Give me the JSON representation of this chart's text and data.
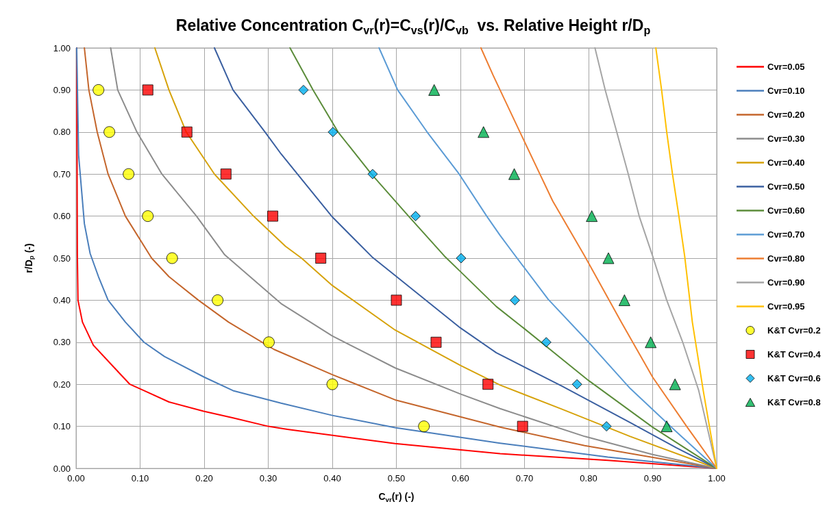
{
  "chart_data": {
    "type": "line",
    "title": "Relative Concentration C$_{vr}$(r)=C$_{vs}$(r)/C$_{vb}$  vs. Relative Height r/D$_{p}$",
    "xlabel": "C$_{vr}$(r) (-)",
    "ylabel": "r/D$_{p}$ (-)",
    "xlim": [
      0,
      1
    ],
    "ylim": [
      0,
      1
    ],
    "xticks": [
      {
        "value": 0,
        "label": "0.00"
      },
      {
        "value": 0.1,
        "label": "0.10"
      },
      {
        "value": 0.2,
        "label": "0.20"
      },
      {
        "value": 0.3,
        "label": "0.30"
      },
      {
        "value": 0.4,
        "label": "0.40"
      },
      {
        "value": 0.5,
        "label": "0.50"
      },
      {
        "value": 0.6,
        "label": "0.60"
      },
      {
        "value": 0.7,
        "label": "0.70"
      },
      {
        "value": 0.8,
        "label": "0.80"
      },
      {
        "value": 0.9,
        "label": "0.90"
      },
      {
        "value": 1,
        "label": "1.00"
      }
    ],
    "yticks": [
      {
        "value": 0,
        "label": "0.00"
      },
      {
        "value": 0.1,
        "label": "0.10"
      },
      {
        "value": 0.2,
        "label": "0.20"
      },
      {
        "value": 0.3,
        "label": "0.30"
      },
      {
        "value": 0.4,
        "label": "0.40"
      },
      {
        "value": 0.5,
        "label": "0.50"
      },
      {
        "value": 0.6,
        "label": "0.60"
      },
      {
        "value": 0.7,
        "label": "0.70"
      },
      {
        "value": 0.8,
        "label": "0.80"
      },
      {
        "value": 0.9,
        "label": "0.90"
      },
      {
        "value": 1,
        "label": "1.00"
      }
    ],
    "grid": true,
    "legend": "right",
    "series": [
      {
        "name": "Cvr=0.05",
        "color": "#ff0000",
        "x": [
          0.001,
          0.002,
          0.003,
          0.01,
          0.027,
          0.06,
          0.084,
          0.106,
          0.145,
          0.199,
          0.245,
          0.3,
          0.33,
          0.498,
          0.662,
          0.83,
          1.0
        ],
        "values": [
          1.0,
          0.511,
          0.4,
          0.348,
          0.293,
          0.239,
          0.2,
          0.185,
          0.158,
          0.136,
          0.12,
          0.1,
          0.093,
          0.059,
          0.035,
          0.019,
          0.0
        ]
      },
      {
        "name": "Cvr=0.10",
        "color": "#4a7ebb",
        "x": [
          0.001,
          0.004,
          0.013,
          0.022,
          0.035,
          0.05,
          0.077,
          0.106,
          0.138,
          0.2,
          0.245,
          0.32,
          0.4,
          0.498,
          0.662,
          0.83,
          1.0
        ],
        "values": [
          1.0,
          0.745,
          0.582,
          0.511,
          0.456,
          0.4,
          0.348,
          0.3,
          0.266,
          0.217,
          0.185,
          0.155,
          0.126,
          0.097,
          0.06,
          0.027,
          0.0
        ]
      },
      {
        "name": "Cvr=0.20",
        "color": "#c4652b",
        "x": [
          0.013,
          0.02,
          0.033,
          0.05,
          0.077,
          0.118,
          0.145,
          0.191,
          0.238,
          0.309,
          0.4,
          0.498,
          0.662,
          0.794,
          1.0
        ],
        "values": [
          1.0,
          0.9,
          0.8,
          0.7,
          0.6,
          0.5,
          0.456,
          0.4,
          0.348,
          0.283,
          0.223,
          0.163,
          0.098,
          0.054,
          0.0
        ]
      },
      {
        "name": "Cvr=0.30",
        "color": "#8c8c8c",
        "x": [
          0.054,
          0.065,
          0.095,
          0.134,
          0.188,
          0.232,
          0.32,
          0.4,
          0.498,
          0.6,
          0.662,
          0.794,
          0.9,
          1.0
        ],
        "values": [
          1.0,
          0.9,
          0.8,
          0.7,
          0.6,
          0.508,
          0.392,
          0.315,
          0.239,
          0.177,
          0.142,
          0.076,
          0.033,
          0.0
        ]
      },
      {
        "name": "Cvr=0.40",
        "color": "#d6a20a",
        "x": [
          0.123,
          0.145,
          0.172,
          0.216,
          0.277,
          0.327,
          0.352,
          0.4,
          0.498,
          0.6,
          0.662,
          0.758,
          0.865,
          1.0
        ],
        "values": [
          1.0,
          0.9,
          0.8,
          0.7,
          0.6,
          0.528,
          0.5,
          0.435,
          0.329,
          0.245,
          0.198,
          0.141,
          0.076,
          0.0
        ]
      },
      {
        "name": "Cvr=0.50",
        "color": "#3a5fa0",
        "x": [
          0.216,
          0.245,
          0.295,
          0.32,
          0.4,
          0.462,
          0.498,
          0.6,
          0.656,
          0.758,
          0.865,
          0.937,
          1.0
        ],
        "values": [
          1.0,
          0.9,
          0.8,
          0.748,
          0.598,
          0.503,
          0.459,
          0.334,
          0.275,
          0.196,
          0.109,
          0.049,
          0.0
        ]
      },
      {
        "name": "Cvr=0.60",
        "color": "#5b8c3a",
        "x": [
          0.334,
          0.37,
          0.409,
          0.461,
          0.519,
          0.575,
          0.6,
          0.656,
          0.7,
          0.8,
          0.9,
          1.0
        ],
        "values": [
          1.0,
          0.9,
          0.8,
          0.7,
          0.6,
          0.505,
          0.468,
          0.385,
          0.332,
          0.209,
          0.098,
          0.0
        ]
      },
      {
        "name": "Cvr=0.70",
        "color": "#5b9bd5",
        "x": [
          0.473,
          0.502,
          0.548,
          0.598,
          0.641,
          0.662,
          0.683,
          0.737,
          0.8,
          0.865,
          0.937,
          1.0
        ],
        "values": [
          1.0,
          0.9,
          0.8,
          0.7,
          0.6,
          0.554,
          0.511,
          0.402,
          0.3,
          0.19,
          0.087,
          0.0
        ]
      },
      {
        "name": "Cvr=0.80",
        "color": "#ed7d31",
        "x": [
          0.632,
          0.651,
          0.7,
          0.744,
          0.794,
          0.851,
          0.9,
          0.954,
          1.0
        ],
        "values": [
          1.0,
          0.935,
          0.777,
          0.636,
          0.505,
          0.348,
          0.217,
          0.098,
          0.0
        ]
      },
      {
        "name": "Cvr=0.90",
        "color": "#a5a5a5",
        "x": [
          0.81,
          0.826,
          0.844,
          0.862,
          0.879,
          0.9,
          0.922,
          0.947,
          0.972,
          1.0
        ],
        "values": [
          1.0,
          0.9,
          0.8,
          0.7,
          0.6,
          0.505,
          0.4,
          0.3,
          0.185,
          0.0
        ]
      },
      {
        "name": "Cvr=0.95",
        "color": "#ffc000",
        "x": [
          0.905,
          0.914,
          0.922,
          0.931,
          0.941,
          0.95,
          0.962,
          0.979,
          1.0
        ],
        "values": [
          1.0,
          0.9,
          0.8,
          0.7,
          0.6,
          0.505,
          0.348,
          0.185,
          0.0
        ]
      },
      {
        "name": "K&T Cvr=0.2",
        "type": "scatter",
        "marker": "circle",
        "color": "#ffff00",
        "x": [
          0.035,
          0.052,
          0.082,
          0.112,
          0.15,
          0.221,
          0.301,
          0.4,
          0.543
        ],
        "values": [
          0.9,
          0.8,
          0.7,
          0.6,
          0.5,
          0.4,
          0.3,
          0.2,
          0.1
        ]
      },
      {
        "name": "K&T Cvr=0.4",
        "type": "scatter",
        "marker": "square",
        "color": "#ff0000",
        "x": [
          0.112,
          0.173,
          0.234,
          0.307,
          0.382,
          0.5,
          0.562,
          0.643,
          0.697
        ],
        "values": [
          0.9,
          0.8,
          0.7,
          0.6,
          0.5,
          0.4,
          0.3,
          0.2,
          0.1
        ]
      },
      {
        "name": "K&T Cvr=0.6",
        "type": "scatter",
        "marker": "diamond",
        "color": "#00b0f0",
        "x": [
          0.355,
          0.401,
          0.463,
          0.53,
          0.601,
          0.685,
          0.734,
          0.782,
          0.828
        ],
        "values": [
          0.9,
          0.8,
          0.7,
          0.6,
          0.5,
          0.4,
          0.3,
          0.2,
          0.1
        ]
      },
      {
        "name": "K&T Cvr=0.8",
        "type": "scatter",
        "marker": "triangle",
        "color": "#00b050",
        "x": [
          0.559,
          0.636,
          0.684,
          0.805,
          0.831,
          0.856,
          0.897,
          0.935,
          0.922
        ],
        "values": [
          0.9,
          0.8,
          0.7,
          0.6,
          0.5,
          0.4,
          0.3,
          0.2,
          0.1
        ]
      }
    ]
  }
}
